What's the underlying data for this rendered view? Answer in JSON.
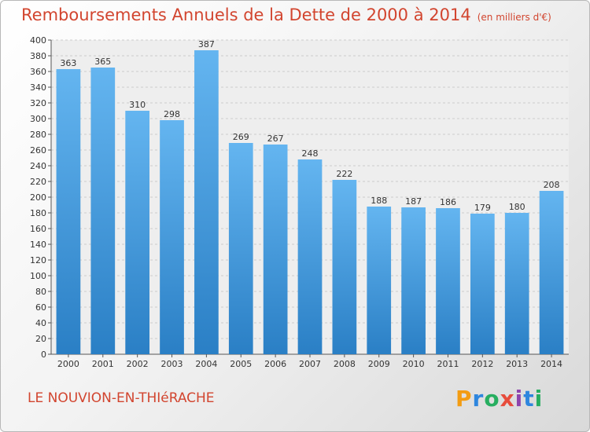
{
  "title": "Remboursements Annuels de la Dette de 2000 à 2014",
  "unit_note": "(en milliers d'€)",
  "commune": "LE NOUVION-EN-THIéRACHE",
  "logo_text": "Proxiti",
  "colors": {
    "bar_top": "#64b5f0",
    "bar_bottom": "#2a7fc5",
    "title": "#d2452f",
    "grid": "#cccccc"
  },
  "chart_data": {
    "type": "bar",
    "categories": [
      "2000",
      "2001",
      "2002",
      "2003",
      "2004",
      "2005",
      "2006",
      "2007",
      "2008",
      "2009",
      "2010",
      "2011",
      "2012",
      "2013",
      "2014"
    ],
    "values": [
      363,
      365,
      310,
      298,
      387,
      269,
      267,
      248,
      222,
      188,
      187,
      186,
      179,
      180,
      208
    ],
    "ylim": [
      0,
      400
    ],
    "ytick_step": 20,
    "grid": true
  }
}
